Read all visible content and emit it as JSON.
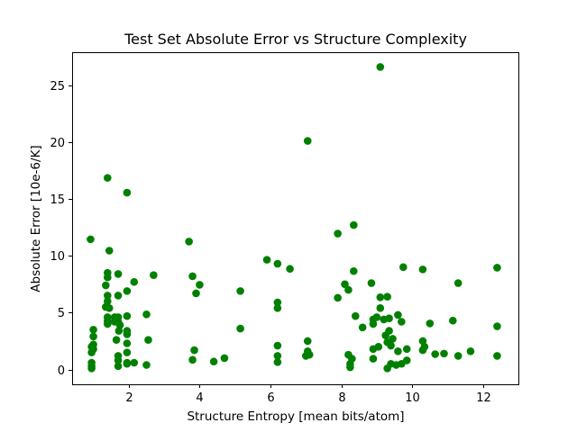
{
  "chart_data": {
    "type": "scatter",
    "title": "Test Set Absolute Error vs Structure Complexity",
    "xlabel": "Structure Entropy [mean bits/atom]",
    "ylabel": "Absolute Error [10e-6/K]",
    "xlim": [
      0.4,
      13.0
    ],
    "ylim": [
      -1.3,
      27.9
    ],
    "xticks": [
      2,
      4,
      6,
      8,
      10,
      12
    ],
    "yticks": [
      0,
      5,
      10,
      15,
      20,
      25
    ],
    "grid": false,
    "marker_color": "#008000",
    "series": [
      {
        "points": [
          [
            0.92,
            11.45
          ],
          [
            0.95,
            2.0
          ],
          [
            0.95,
            1.5
          ],
          [
            0.95,
            0.6
          ],
          [
            0.95,
            0.3
          ],
          [
            0.95,
            0.1
          ],
          [
            1.0,
            2.9
          ],
          [
            1.0,
            3.5
          ],
          [
            1.0,
            2.2
          ],
          [
            1.0,
            1.8
          ],
          [
            1.35,
            7.4
          ],
          [
            1.4,
            8.5
          ],
          [
            1.4,
            8.1
          ],
          [
            1.4,
            6.5
          ],
          [
            1.4,
            6.0
          ],
          [
            1.35,
            5.5
          ],
          [
            1.45,
            5.4
          ],
          [
            1.4,
            4.6
          ],
          [
            1.4,
            4.3
          ],
          [
            1.4,
            4.0
          ],
          [
            1.45,
            10.45
          ],
          [
            1.4,
            16.85
          ],
          [
            1.6,
            4.6
          ],
          [
            1.6,
            4.2
          ],
          [
            1.65,
            2.6
          ],
          [
            1.7,
            8.4
          ],
          [
            1.7,
            6.5
          ],
          [
            1.7,
            4.6
          ],
          [
            1.7,
            4.2
          ],
          [
            1.72,
            3.4
          ],
          [
            1.75,
            3.9
          ],
          [
            1.7,
            1.2
          ],
          [
            1.7,
            0.8
          ],
          [
            1.7,
            0.3
          ],
          [
            1.95,
            15.55
          ],
          [
            1.95,
            6.9
          ],
          [
            1.95,
            4.7
          ],
          [
            1.95,
            3.4
          ],
          [
            1.95,
            3.1
          ],
          [
            1.95,
            2.3
          ],
          [
            1.95,
            1.5
          ],
          [
            1.95,
            0.6
          ],
          [
            1.95,
            0.5
          ],
          [
            2.15,
            7.7
          ],
          [
            2.15,
            0.6
          ],
          [
            2.5,
            4.85
          ],
          [
            2.5,
            0.4
          ],
          [
            2.55,
            2.6
          ],
          [
            2.7,
            8.3
          ],
          [
            3.7,
            11.25
          ],
          [
            3.8,
            8.2
          ],
          [
            3.8,
            0.85
          ],
          [
            3.85,
            1.7
          ],
          [
            3.9,
            6.7
          ],
          [
            4.0,
            7.45
          ],
          [
            4.4,
            0.7
          ],
          [
            4.7,
            1.0
          ],
          [
            5.15,
            6.9
          ],
          [
            5.15,
            3.6
          ],
          [
            5.9,
            9.65
          ],
          [
            6.2,
            9.3
          ],
          [
            6.2,
            5.9
          ],
          [
            6.2,
            5.4
          ],
          [
            6.2,
            2.1
          ],
          [
            6.2,
            1.2
          ],
          [
            6.2,
            0.65
          ],
          [
            6.55,
            8.85
          ],
          [
            7.0,
            1.2
          ],
          [
            7.05,
            1.6
          ],
          [
            7.05,
            2.5
          ],
          [
            7.05,
            20.1
          ],
          [
            7.1,
            1.3
          ],
          [
            7.9,
            11.95
          ],
          [
            7.9,
            6.3
          ],
          [
            8.1,
            7.5
          ],
          [
            8.2,
            7.0
          ],
          [
            8.2,
            1.3
          ],
          [
            8.25,
            0.5
          ],
          [
            8.25,
            0.2
          ],
          [
            8.3,
            0.95
          ],
          [
            8.35,
            12.7
          ],
          [
            8.35,
            8.65
          ],
          [
            8.4,
            4.7
          ],
          [
            8.6,
            3.7
          ],
          [
            8.85,
            7.6
          ],
          [
            8.9,
            4.4
          ],
          [
            8.9,
            4.0
          ],
          [
            8.9,
            1.8
          ],
          [
            8.9,
            0.95
          ],
          [
            9.0,
            4.6
          ],
          [
            9.05,
            2.0
          ],
          [
            9.1,
            26.6
          ],
          [
            9.1,
            6.35
          ],
          [
            9.1,
            5.4
          ],
          [
            9.2,
            4.4
          ],
          [
            9.25,
            3.0
          ],
          [
            9.3,
            6.4
          ],
          [
            9.3,
            2.4
          ],
          [
            9.3,
            0.1
          ],
          [
            9.35,
            4.5
          ],
          [
            9.35,
            3.4
          ],
          [
            9.4,
            2.1
          ],
          [
            9.4,
            0.5
          ],
          [
            9.45,
            2.7
          ],
          [
            9.55,
            0.4
          ],
          [
            9.6,
            4.8
          ],
          [
            9.6,
            1.6
          ],
          [
            9.7,
            4.2
          ],
          [
            9.7,
            0.5
          ],
          [
            9.75,
            9.0
          ],
          [
            9.85,
            1.8
          ],
          [
            9.85,
            0.8
          ],
          [
            10.3,
            8.8
          ],
          [
            10.3,
            2.5
          ],
          [
            10.3,
            1.7
          ],
          [
            10.35,
            2.0
          ],
          [
            10.5,
            4.05
          ],
          [
            10.65,
            1.35
          ],
          [
            10.9,
            1.4
          ],
          [
            11.15,
            4.3
          ],
          [
            11.3,
            7.6
          ],
          [
            11.3,
            1.2
          ],
          [
            11.65,
            1.6
          ],
          [
            12.4,
            8.95
          ],
          [
            12.4,
            3.8
          ],
          [
            12.4,
            1.2
          ]
        ]
      }
    ]
  }
}
